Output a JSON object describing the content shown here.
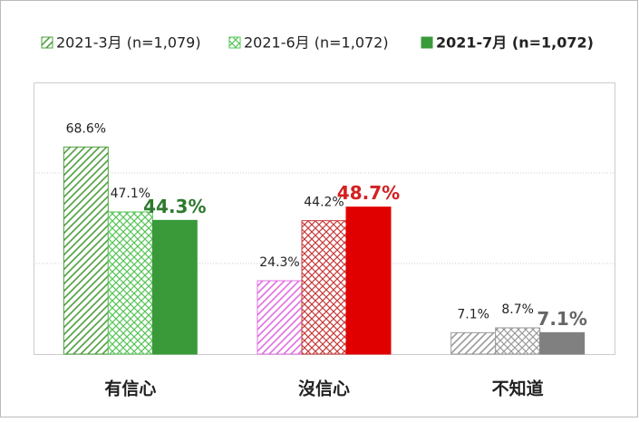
{
  "chart_data": {
    "type": "bar",
    "categories": [
      "有信心",
      "沒信心",
      "不知道"
    ],
    "series": [
      {
        "name": "2021-3月 (n=1,079)",
        "pattern": "diagonal",
        "colors": [
          "#4f9f3f",
          "#e070e0",
          "#9a9a9a"
        ],
        "values": [
          68.6,
          24.3,
          7.1
        ],
        "value_labels": [
          "68.6%",
          "24.3%",
          "7.1%"
        ]
      },
      {
        "name": "2021-6月  (n=1,072)",
        "pattern": "checker",
        "colors": [
          "#56c456",
          "#c83a3a",
          "#9a9a9a"
        ],
        "values": [
          47.1,
          44.2,
          8.7
        ],
        "value_labels": [
          "47.1%",
          "44.2%",
          "8.7%"
        ]
      },
      {
        "name": "2021-7月  (n=1,072)",
        "pattern": "solid",
        "colors": [
          "#3a9a3a",
          "#e00000",
          "#808080"
        ],
        "label_colors": [
          "#2e7a2e",
          "#d42020",
          "#666666"
        ],
        "values": [
          44.3,
          48.7,
          7.1
        ],
        "value_labels": [
          "44.3%",
          "48.7%",
          "7.1%"
        ]
      }
    ],
    "ylim": [
      0,
      90
    ],
    "yticks": [
      0,
      30,
      60,
      90
    ],
    "grid": true
  }
}
